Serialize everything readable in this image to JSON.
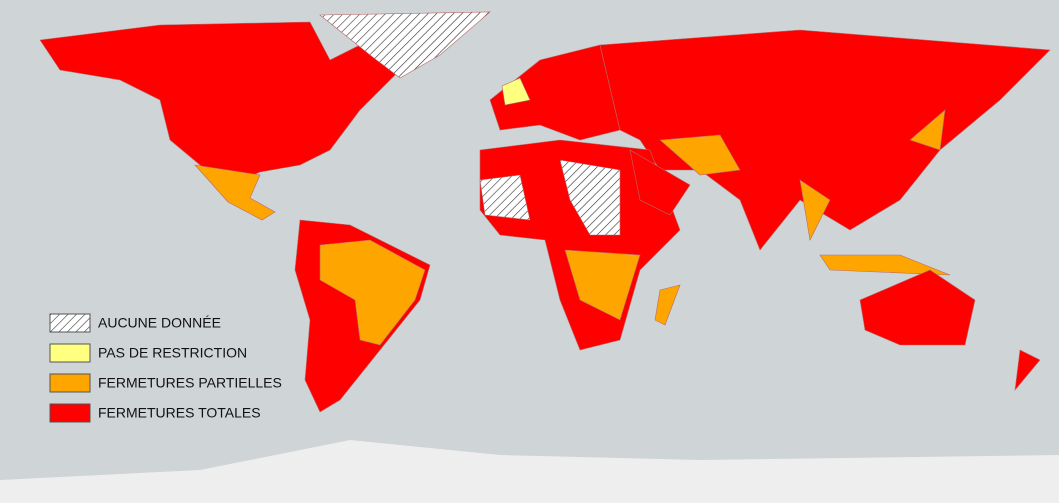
{
  "legend": {
    "items": [
      {
        "label": "AUCUNE DONNÉE",
        "color": "#ffffff"
      },
      {
        "label": "PAS DE RESTRICTION",
        "color": "#ffff80"
      },
      {
        "label": "FERMETURES PARTIELLES",
        "color": "#ffa500"
      },
      {
        "label": "FERMETURES TOTALES",
        "color": "#ff0000"
      }
    ]
  }
}
